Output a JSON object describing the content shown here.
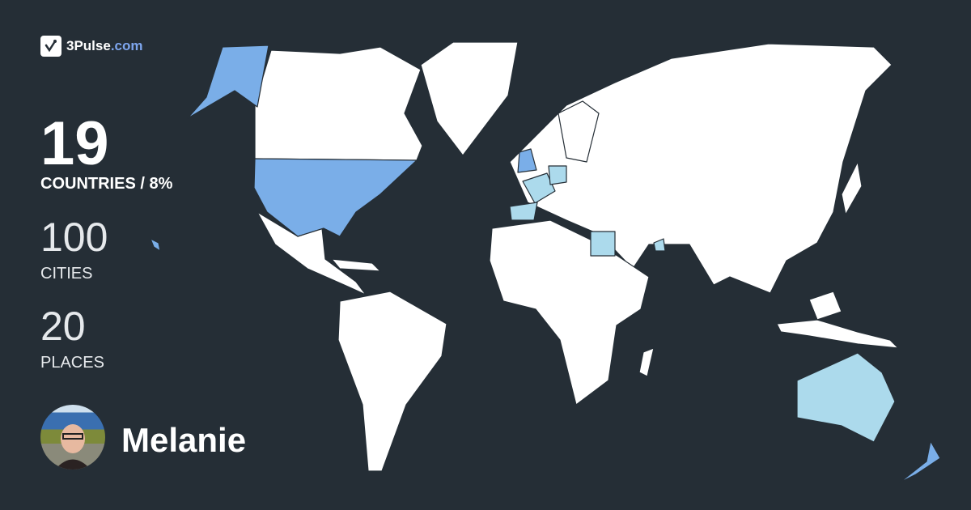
{
  "brand": {
    "name": "3Pulse",
    "domain": ".com",
    "icon": "pulse-check-icon"
  },
  "stats": {
    "countries": {
      "value": "19",
      "label": "COUNTRIES / 8%"
    },
    "cities": {
      "value": "100",
      "label": "CITIES"
    },
    "places": {
      "value": "20",
      "label": "PLACES"
    }
  },
  "user": {
    "name": "Melanie"
  },
  "colors": {
    "background": "#252e36",
    "land": "#ffffff",
    "visited_primary": "#7aaee8",
    "visited_secondary": "#acdaec",
    "brand_accent": "#7ea6ee"
  }
}
